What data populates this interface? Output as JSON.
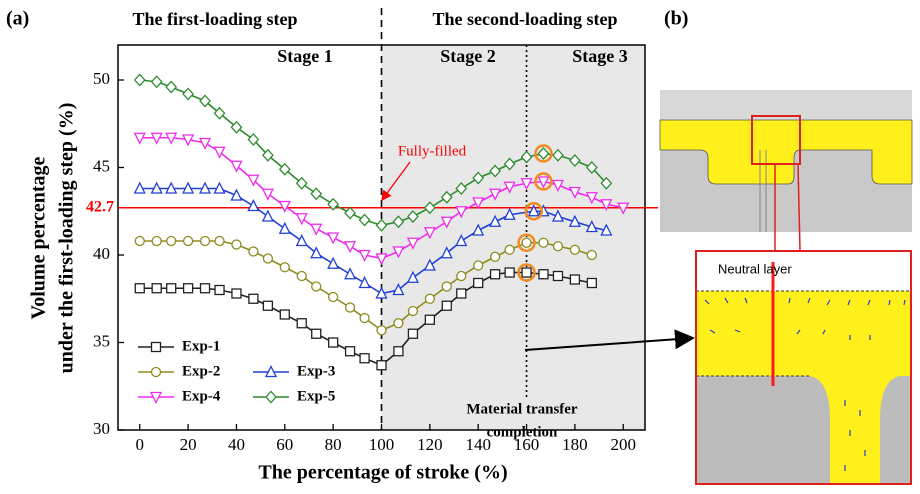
{
  "chart_data": {
    "type": "line",
    "panel_label": "(a)",
    "xlabel": "The percentage of stroke (%)",
    "ylabel": [
      "Volume percentage",
      "under the first-loading step (%)"
    ],
    "xlim": [
      -9,
      209
    ],
    "ylim": [
      30,
      52
    ],
    "xticks": [
      0,
      20,
      40,
      60,
      80,
      100,
      120,
      140,
      160,
      180,
      200
    ],
    "yticks": [
      30,
      35,
      40,
      45,
      50
    ],
    "step_labels": [
      "The first-loading step",
      "The second-loading step"
    ],
    "stage_labels": [
      "Stage 1",
      "Stage 2",
      "Stage 3"
    ],
    "stage_boundaries": [
      100,
      160
    ],
    "reference_line": {
      "value": 42.7,
      "label": "42.7",
      "color": "#ff0000",
      "annotation": "Fully-filled"
    },
    "completion_label": [
      "Material transfer",
      "completion"
    ],
    "series": [
      {
        "name": "Exp-1",
        "color": "#222222",
        "marker": "square",
        "highlight_index": 24,
        "x": [
          0,
          7,
          13,
          20,
          27,
          33,
          40,
          47,
          53,
          60,
          67,
          73,
          80,
          87,
          93,
          100,
          107,
          113,
          120,
          127,
          133,
          140,
          147,
          153,
          160,
          167,
          173,
          180,
          187
        ],
        "values": [
          38.1,
          38.1,
          38.1,
          38.1,
          38.1,
          38.0,
          37.8,
          37.5,
          37.1,
          36.6,
          36.1,
          35.5,
          35.0,
          34.5,
          34.1,
          33.7,
          34.5,
          35.5,
          36.3,
          37.1,
          37.8,
          38.4,
          38.9,
          39.0,
          39.0,
          38.9,
          38.8,
          38.6,
          38.4
        ]
      },
      {
        "name": "Exp-2",
        "color": "#8f8a1e",
        "marker": "circle",
        "highlight_index": 24,
        "x": [
          0,
          7,
          13,
          20,
          27,
          33,
          40,
          47,
          53,
          60,
          67,
          73,
          80,
          87,
          93,
          100,
          107,
          113,
          120,
          127,
          133,
          140,
          147,
          153,
          160,
          167,
          173,
          180,
          187
        ],
        "values": [
          40.8,
          40.8,
          40.8,
          40.8,
          40.8,
          40.8,
          40.6,
          40.2,
          39.8,
          39.3,
          38.8,
          38.2,
          37.6,
          37.0,
          36.4,
          35.7,
          36.1,
          36.8,
          37.5,
          38.2,
          38.8,
          39.4,
          39.9,
          40.3,
          40.7,
          40.7,
          40.5,
          40.3,
          40.0
        ]
      },
      {
        "name": "Exp-3",
        "color": "#1f3fd6",
        "marker": "triangle-up",
        "highlight_index": 24,
        "x": [
          0,
          7,
          13,
          20,
          27,
          33,
          40,
          47,
          53,
          60,
          67,
          73,
          80,
          87,
          93,
          100,
          107,
          113,
          120,
          127,
          133,
          140,
          147,
          153,
          163,
          167,
          173,
          180,
          187,
          193
        ],
        "values": [
          43.8,
          43.8,
          43.8,
          43.8,
          43.8,
          43.8,
          43.4,
          42.8,
          42.2,
          41.5,
          40.8,
          40.1,
          39.5,
          38.9,
          38.4,
          37.8,
          38.0,
          38.7,
          39.4,
          40.1,
          40.8,
          41.4,
          41.9,
          42.3,
          42.5,
          42.5,
          42.2,
          41.9,
          41.6,
          41.4
        ]
      },
      {
        "name": "Exp-4",
        "color": "#ee2aee",
        "marker": "triangle-down",
        "highlight_index": 25,
        "x": [
          0,
          7,
          13,
          20,
          27,
          33,
          40,
          47,
          53,
          60,
          67,
          73,
          80,
          87,
          93,
          100,
          107,
          113,
          120,
          127,
          133,
          140,
          147,
          153,
          160,
          167,
          173,
          180,
          187,
          193,
          200
        ],
        "values": [
          46.7,
          46.7,
          46.7,
          46.6,
          46.4,
          45.9,
          45.1,
          44.3,
          43.5,
          42.8,
          42.1,
          41.5,
          41.0,
          40.5,
          40.0,
          39.8,
          40.2,
          40.7,
          41.3,
          41.9,
          42.5,
          43.0,
          43.5,
          43.9,
          44.1,
          44.2,
          44.0,
          43.6,
          43.3,
          42.9,
          42.7
        ]
      },
      {
        "name": "Exp-5",
        "color": "#2d8a2d",
        "marker": "diamond",
        "highlight_index": 25,
        "x": [
          0,
          7,
          13,
          20,
          27,
          33,
          40,
          47,
          53,
          60,
          67,
          73,
          80,
          87,
          93,
          100,
          107,
          113,
          120,
          127,
          133,
          140,
          147,
          153,
          160,
          167,
          173,
          180,
          187,
          193
        ],
        "values": [
          50.0,
          49.9,
          49.6,
          49.2,
          48.8,
          48.1,
          47.3,
          46.6,
          45.7,
          44.9,
          44.1,
          43.5,
          42.9,
          42.4,
          42.0,
          41.7,
          41.9,
          42.2,
          42.7,
          43.3,
          43.8,
          44.4,
          44.8,
          45.2,
          45.6,
          45.8,
          45.7,
          45.4,
          45.0,
          44.1
        ]
      }
    ]
  },
  "panel_b": {
    "label": "(b)",
    "neutral_layer": "Neutral layer"
  }
}
